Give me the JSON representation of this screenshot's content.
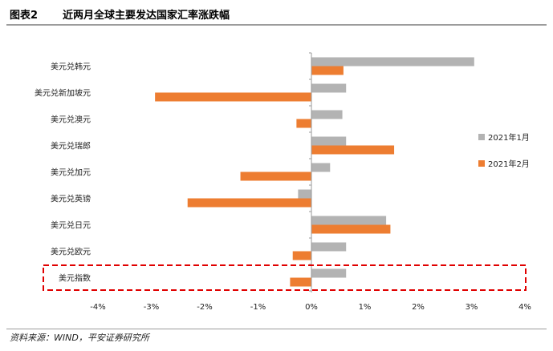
{
  "figure": {
    "label": "图表2",
    "title": "近两月全球主要发达国家汇率涨跌幅",
    "source": "资料来源：WIND，平安证券研究所"
  },
  "chart_data": {
    "type": "bar",
    "orientation": "horizontal",
    "categories": [
      "美元兑韩元",
      "美元兑新加坡元",
      "美元兑澳元",
      "美元兑瑞郎",
      "美元兑加元",
      "美元兑英镑",
      "美元兑日元",
      "美元兑欧元",
      "美元指数"
    ],
    "series": [
      {
        "name": "2021年1月",
        "color": "#b3b3b3",
        "values": [
          3.05,
          0.65,
          0.58,
          0.65,
          0.35,
          -0.25,
          1.4,
          0.65,
          0.65
        ]
      },
      {
        "name": "2021年2月",
        "color": "#ed7d31",
        "values": [
          0.6,
          -2.93,
          -0.28,
          1.55,
          -1.33,
          -2.32,
          1.48,
          -0.35,
          -0.4
        ]
      }
    ],
    "xlim": [
      -4,
      4
    ],
    "xticks": [
      -4,
      -3,
      -2,
      -1,
      0,
      1,
      2,
      3,
      4
    ],
    "xtick_labels": [
      "-4%",
      "-3%",
      "-2%",
      "-1%",
      "0%",
      "1%",
      "2%",
      "3%",
      "4%"
    ],
    "highlight_category": "美元指数",
    "highlight_color": "#e00000",
    "legend_position": "right",
    "grid": false
  }
}
